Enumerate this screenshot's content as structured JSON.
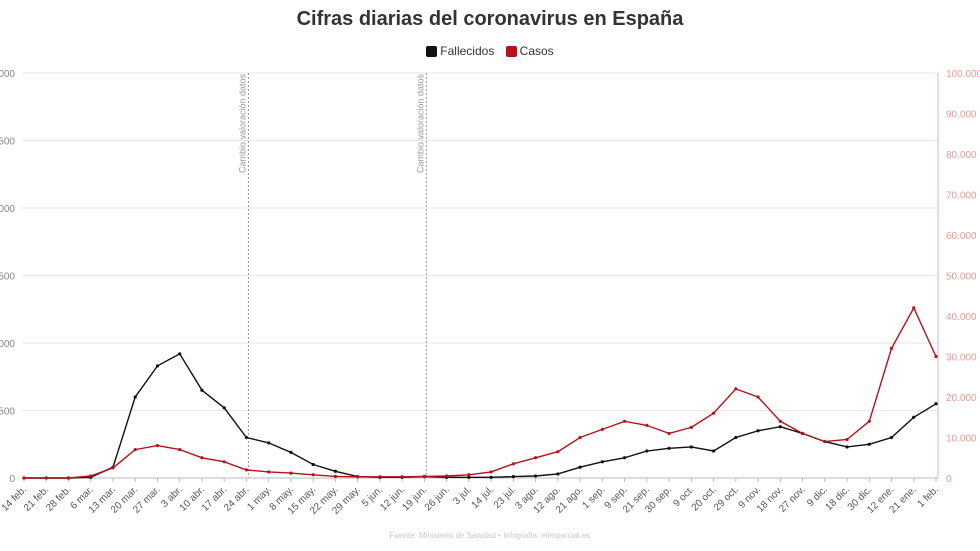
{
  "title": "Cifras diarias del coronavirus en España",
  "source": "Fuente: Ministerio de Sanidad • Infografía: elimparcial.es",
  "legend": {
    "deaths": "Fallecidos",
    "cases": "Casos"
  },
  "colors": {
    "deaths": "#111111",
    "cases": "#b5121b",
    "grid": "#e6e6e6",
    "annotation": "#999999"
  },
  "annotations": [
    "Cambio valoración datos",
    "Cambio valoración datos"
  ],
  "chart_data": {
    "type": "line",
    "grid": true,
    "legend_position": "top-center",
    "x_tick_labels": [
      "14 feb.",
      "21 feb.",
      "28 feb.",
      "6 mar.",
      "13 mar.",
      "20 mar.",
      "27 mar.",
      "3 abr.",
      "10 abr.",
      "17 abr.",
      "24 abr.",
      "1 may.",
      "8 may.",
      "15 may.",
      "22 may.",
      "29 may.",
      "5 jun.",
      "12 jun.",
      "19 jun.",
      "26 jun.",
      "3 jul.",
      "14 jul.",
      "23 jul.",
      "3 ago.",
      "12 ago.",
      "21 ago.",
      "1 sep.",
      "9 sep.",
      "21 sep.",
      "30 sep.",
      "9 oct.",
      "20 oct.",
      "29 oct.",
      "9 nov.",
      "18 nov.",
      "27 nov.",
      "9 dic.",
      "18 dic.",
      "30 dic.",
      "12 ene.",
      "21 ene.",
      "1 feb."
    ],
    "y_left": {
      "ticks": [
        "0",
        "500",
        "000",
        "500",
        "000",
        "500",
        "000"
      ],
      "max": 3000
    },
    "y_right": {
      "ticks": [
        "0",
        "10.000",
        "20.000",
        "30.000",
        "40.000",
        "50.000",
        "60.000",
        "70.000",
        "80.000",
        "90.000",
        "100.000"
      ],
      "max": 100000
    },
    "annotation_dates": [
      "24 abr.",
      "19 jun."
    ],
    "series": [
      {
        "name": "Fallecidos",
        "axis": "left",
        "points": [
          [
            "14 feb.",
            0
          ],
          [
            "21 feb.",
            0
          ],
          [
            "28 feb.",
            0
          ],
          [
            "6 mar.",
            5
          ],
          [
            "13 mar.",
            80
          ],
          [
            "20 mar.",
            600
          ],
          [
            "27 mar.",
            830
          ],
          [
            "3 abr.",
            920
          ],
          [
            "10 abr.",
            650
          ],
          [
            "17 abr.",
            520
          ],
          [
            "24 abr.",
            300
          ],
          [
            "1 may.",
            260
          ],
          [
            "8 may.",
            190
          ],
          [
            "15 may.",
            100
          ],
          [
            "22 may.",
            50
          ],
          [
            "29 may.",
            10
          ],
          [
            "5 jun.",
            5
          ],
          [
            "12 jun.",
            5
          ],
          [
            "19 jun.",
            10
          ],
          [
            "26 jun.",
            5
          ],
          [
            "3 jul.",
            5
          ],
          [
            "14 jul.",
            5
          ],
          [
            "23 jul.",
            10
          ],
          [
            "3 ago.",
            15
          ],
          [
            "12 ago.",
            30
          ],
          [
            "21 ago.",
            80
          ],
          [
            "1 sep.",
            120
          ],
          [
            "9 sep.",
            150
          ],
          [
            "21 sep.",
            200
          ],
          [
            "30 sep.",
            220
          ],
          [
            "9 oct.",
            230
          ],
          [
            "20 oct.",
            200
          ],
          [
            "29 oct.",
            300
          ],
          [
            "9 nov.",
            350
          ],
          [
            "18 nov.",
            380
          ],
          [
            "27 nov.",
            330
          ],
          [
            "9 dic.",
            270
          ],
          [
            "18 dic.",
            230
          ],
          [
            "30 dic.",
            250
          ],
          [
            "12 ene.",
            300
          ],
          [
            "21 ene.",
            450
          ],
          [
            "1 feb.",
            550
          ]
        ]
      },
      {
        "name": "Casos",
        "axis": "right",
        "points": [
          [
            "14 feb.",
            0
          ],
          [
            "21 feb.",
            0
          ],
          [
            "28 feb.",
            0
          ],
          [
            "6 mar.",
            500
          ],
          [
            "13 mar.",
            2500
          ],
          [
            "20 mar.",
            7000
          ],
          [
            "27 mar.",
            8000
          ],
          [
            "3 abr.",
            7000
          ],
          [
            "10 abr.",
            5000
          ],
          [
            "17 abr.",
            4000
          ],
          [
            "24 abr.",
            2000
          ],
          [
            "1 may.",
            1500
          ],
          [
            "8 may.",
            1200
          ],
          [
            "15 may.",
            800
          ],
          [
            "22 may.",
            400
          ],
          [
            "29 may.",
            300
          ],
          [
            "5 jun.",
            300
          ],
          [
            "12 jun.",
            300
          ],
          [
            "19 jun.",
            400
          ],
          [
            "26 jun.",
            500
          ],
          [
            "3 jul.",
            800
          ],
          [
            "14 jul.",
            1500
          ],
          [
            "23 jul.",
            3500
          ],
          [
            "3 ago.",
            5000
          ],
          [
            "12 ago.",
            6500
          ],
          [
            "21 ago.",
            10000
          ],
          [
            "1 sep.",
            12000
          ],
          [
            "9 sep.",
            14000
          ],
          [
            "21 sep.",
            13000
          ],
          [
            "30 sep.",
            11000
          ],
          [
            "9 oct.",
            12500
          ],
          [
            "20 oct.",
            16000
          ],
          [
            "29 oct.",
            22000
          ],
          [
            "9 nov.",
            20000
          ],
          [
            "18 nov.",
            14000
          ],
          [
            "27 nov.",
            11000
          ],
          [
            "9 dic.",
            9000
          ],
          [
            "18 dic.",
            9500
          ],
          [
            "30 dic.",
            14000
          ],
          [
            "12 ene.",
            32000
          ],
          [
            "21 ene.",
            42000
          ],
          [
            "1 feb.",
            30000
          ]
        ]
      }
    ]
  }
}
